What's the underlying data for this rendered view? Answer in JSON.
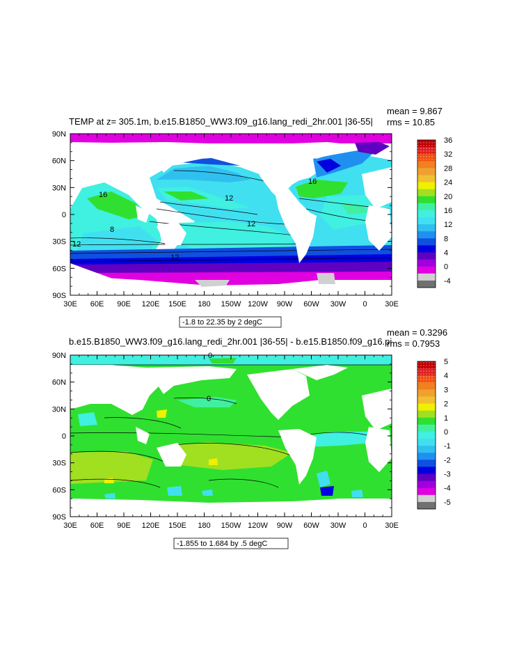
{
  "chart_data": [
    {
      "type": "heatmap",
      "title": "TEMP at z= 305.1m, b.e15.B1850_WW3.f09_g16.lang_redi_2hr.001 |36-55|",
      "stats": {
        "mean": "mean = 9.867",
        "rms": "rms = 10.85"
      },
      "x_ticks": [
        "30E",
        "60E",
        "90E",
        "120E",
        "150E",
        "180",
        "150W",
        "120W",
        "90W",
        "60W",
        "30W",
        "0",
        "30E"
      ],
      "y_ticks": [
        "90N",
        "60N",
        "30N",
        "0",
        "30S",
        "60S",
        "90S"
      ],
      "xlim": [
        30,
        390
      ],
      "ylim": [
        -90,
        90
      ],
      "contour_labels": [
        "16",
        "12",
        "12",
        "16",
        "12",
        "8",
        "12"
      ],
      "info": "-1.8 to 22.35 by 2 degC",
      "colorbar": {
        "labels": [
          "36",
          "32",
          "28",
          "24",
          "20",
          "16",
          "12",
          "8",
          "4",
          "0",
          "-4"
        ],
        "colors": [
          "#c00000",
          "#e02020",
          "#f05010",
          "#f08020",
          "#f0a030",
          "#f0c030",
          "#f0f000",
          "#a0e020",
          "#30e030",
          "#40f0a0",
          "#40f0e0",
          "#40e0f0",
          "#30c0f0",
          "#2090f0",
          "#1050e0",
          "#0000e0",
          "#6000c0",
          "#a000e0",
          "#e000e0",
          "#d0d0d0",
          "#707070"
        ]
      }
    },
    {
      "type": "heatmap",
      "title": "b.e15.B1850_WW3.f09_g16.lang_redi_2hr.001 |36-55| - b.e15.B1850.f09_g16.pi",
      "stats": {
        "mean": "mean = 0.3296",
        "rms": "rms = 0.7953"
      },
      "x_ticks": [
        "30E",
        "60E",
        "90E",
        "120E",
        "150E",
        "180",
        "150W",
        "120W",
        "90W",
        "60W",
        "30W",
        "0",
        "30E"
      ],
      "y_ticks": [
        "90N",
        "60N",
        "30N",
        "0",
        "30S",
        "60S",
        "90S"
      ],
      "xlim": [
        30,
        390
      ],
      "ylim": [
        -90,
        90
      ],
      "contour_labels": [
        "0",
        "0"
      ],
      "info": "-1.855 to 1.684 by .5 degC",
      "colorbar": {
        "labels": [
          "5",
          "4",
          "3",
          "2",
          "1",
          "0",
          "-1",
          "-2",
          "-3",
          "-4",
          "-5"
        ],
        "colors": [
          "#c00000",
          "#e02020",
          "#f05010",
          "#f08020",
          "#f0a030",
          "#f0c030",
          "#f0f000",
          "#a0e020",
          "#30e030",
          "#40f0a0",
          "#40f0e0",
          "#40e0f0",
          "#30c0f0",
          "#2090f0",
          "#1050e0",
          "#0000e0",
          "#6000c0",
          "#a000e0",
          "#e000e0",
          "#d0d0d0",
          "#707070"
        ]
      }
    }
  ]
}
